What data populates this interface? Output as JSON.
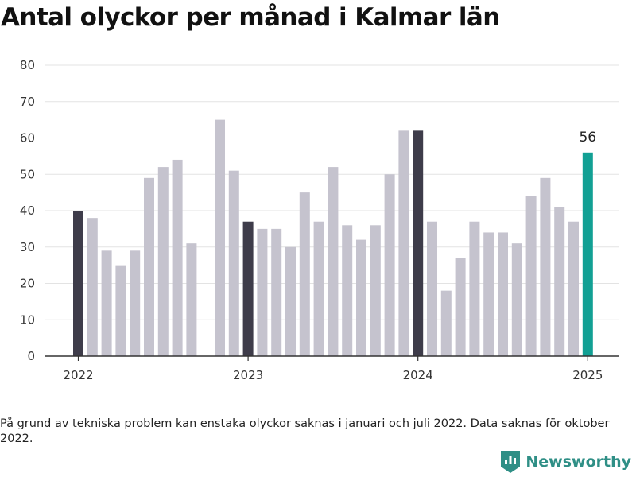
{
  "title": "Antal olyckor per månad i Kalmar län",
  "note": "På grund av tekniska problem kan enstaka olyckor saknas i januari och juli 2022. Data saknas för oktober 2022.",
  "brand": {
    "name": "Newsworthy",
    "icon": "newsworthy-logo-icon",
    "color": "#2f8f86"
  },
  "colors": {
    "default": "#c5c3ce",
    "january": "#3e3c4a",
    "latest": "#12a094",
    "grid": "#e3e3e3",
    "axis": "#333333"
  },
  "chart_data": {
    "type": "bar",
    "title": "Antal olyckor per månad i Kalmar län",
    "xlabel": "",
    "ylabel": "",
    "ylim": [
      0,
      80
    ],
    "yticks": [
      0,
      10,
      20,
      30,
      40,
      50,
      60,
      70,
      80
    ],
    "xticks": [
      {
        "label": "2022",
        "month": "2022-01"
      },
      {
        "label": "2023",
        "month": "2023-01"
      },
      {
        "label": "2024",
        "month": "2024-01"
      },
      {
        "label": "2025",
        "month": "2025-01"
      }
    ],
    "grid": true,
    "months": [
      "2022-01",
      "2022-02",
      "2022-03",
      "2022-04",
      "2022-05",
      "2022-06",
      "2022-07",
      "2022-08",
      "2022-09",
      "2022-10",
      "2022-11",
      "2022-12",
      "2023-01",
      "2023-02",
      "2023-03",
      "2023-04",
      "2023-05",
      "2023-06",
      "2023-07",
      "2023-08",
      "2023-09",
      "2023-10",
      "2023-11",
      "2023-12",
      "2024-01",
      "2024-02",
      "2024-03",
      "2024-04",
      "2024-05",
      "2024-06",
      "2024-07",
      "2024-08",
      "2024-09",
      "2024-10",
      "2024-11",
      "2024-12",
      "2025-01"
    ],
    "values": [
      40,
      38,
      29,
      25,
      29,
      49,
      52,
      54,
      31,
      null,
      65,
      51,
      37,
      35,
      35,
      30,
      45,
      37,
      52,
      36,
      32,
      36,
      50,
      62,
      62,
      37,
      18,
      27,
      37,
      34,
      34,
      31,
      44,
      49,
      41,
      37,
      56
    ],
    "annotations": [
      {
        "month": "2025-01",
        "text": "56"
      }
    ]
  }
}
